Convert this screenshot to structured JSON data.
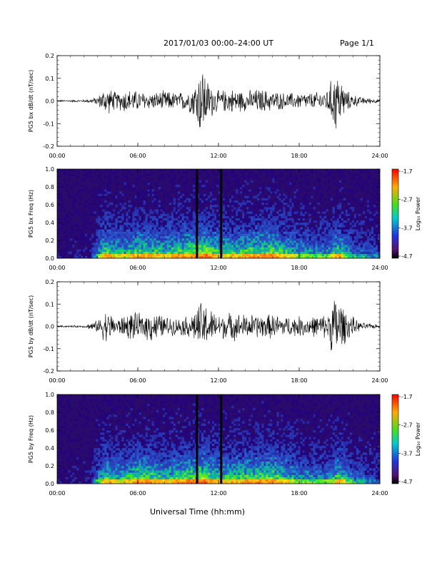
{
  "header": {
    "title": "2017/01/03  00:00–24:00 UT",
    "page": "Page 1/1"
  },
  "xaxis_title": "Universal Time (hh:mm)",
  "time_ticks": [
    "00:00",
    "06:00",
    "12:00",
    "18:00",
    "24:00"
  ],
  "colorbar": {
    "label": "Log₁₀ Power",
    "ticks": [
      "-1.7",
      "-2.7",
      "-3.7",
      "-4.7"
    ]
  },
  "colors": {
    "trace": "#000000",
    "spec_background": "#2a0a6a",
    "gap_line": "#000000"
  },
  "chart_data": [
    {
      "type": "line",
      "ylabel": "PG5 bx dB/dt (nT/sec)",
      "yticks": [
        "0.2",
        "0.1",
        "0.0",
        "-0.1",
        "-0.2"
      ],
      "ylim": [
        -0.2,
        0.2
      ],
      "xlim_hours": [
        0,
        24
      ],
      "envelope": [
        {
          "t": 0,
          "amp": 0.004
        },
        {
          "t": 2,
          "amp": 0.006
        },
        {
          "t": 3,
          "amp": 0.02
        },
        {
          "t": 3.6,
          "amp": 0.07
        },
        {
          "t": 4.5,
          "amp": 0.04
        },
        {
          "t": 5,
          "amp": 0.06
        },
        {
          "t": 6,
          "amp": 0.05
        },
        {
          "t": 7,
          "amp": 0.04
        },
        {
          "t": 8,
          "amp": 0.05
        },
        {
          "t": 9,
          "amp": 0.04
        },
        {
          "t": 10,
          "amp": 0.06
        },
        {
          "t": 10.8,
          "amp": 0.19
        },
        {
          "t": 11.2,
          "amp": 0.1
        },
        {
          "t": 12,
          "amp": 0.05
        },
        {
          "t": 13,
          "amp": 0.06
        },
        {
          "t": 14,
          "amp": 0.05
        },
        {
          "t": 15,
          "amp": 0.06
        },
        {
          "t": 16,
          "amp": 0.05
        },
        {
          "t": 17,
          "amp": 0.04
        },
        {
          "t": 18,
          "amp": 0.04
        },
        {
          "t": 19,
          "amp": 0.04
        },
        {
          "t": 20,
          "amp": 0.05
        },
        {
          "t": 20.8,
          "amp": 0.16
        },
        {
          "t": 21.5,
          "amp": 0.05
        },
        {
          "t": 22.5,
          "amp": 0.02
        },
        {
          "t": 24,
          "amp": 0.008
        }
      ]
    },
    {
      "type": "heatmap",
      "ylabel": "PG5 bx Freq (Hz)",
      "yticks": [
        "1.0",
        "0.8",
        "0.6",
        "0.4",
        "0.2",
        "0.0"
      ],
      "ylim": [
        0,
        1.0
      ],
      "xlim_hours": [
        0,
        24
      ],
      "zlim": [
        -4.7,
        -1.7
      ],
      "data_gaps_hours": [
        10.4,
        12.2
      ],
      "activity": [
        {
          "t": 0,
          "level": 0.05
        },
        {
          "t": 2.5,
          "level": 0.1
        },
        {
          "t": 3.5,
          "level": 0.6
        },
        {
          "t": 5,
          "level": 0.5
        },
        {
          "t": 6,
          "level": 0.6
        },
        {
          "t": 8,
          "level": 0.55
        },
        {
          "t": 10,
          "level": 0.65
        },
        {
          "t": 11,
          "level": 0.7
        },
        {
          "t": 12,
          "level": 0.55
        },
        {
          "t": 14,
          "level": 0.6
        },
        {
          "t": 16,
          "level": 0.65
        },
        {
          "t": 18,
          "level": 0.45
        },
        {
          "t": 20,
          "level": 0.4
        },
        {
          "t": 21,
          "level": 0.6
        },
        {
          "t": 22,
          "level": 0.35
        },
        {
          "t": 24,
          "level": 0.25
        }
      ]
    },
    {
      "type": "line",
      "ylabel": "PG5 by dB/dt (nT/sec)",
      "yticks": [
        "0.2",
        "0.1",
        "0.0",
        "-0.1",
        "-0.2"
      ],
      "ylim": [
        -0.2,
        0.2
      ],
      "xlim_hours": [
        0,
        24
      ],
      "envelope": [
        {
          "t": 0,
          "amp": 0.004
        },
        {
          "t": 2,
          "amp": 0.006
        },
        {
          "t": 3,
          "amp": 0.03
        },
        {
          "t": 3.6,
          "amp": 0.08
        },
        {
          "t": 4.5,
          "amp": 0.04
        },
        {
          "t": 5.5,
          "amp": 0.07
        },
        {
          "t": 6.5,
          "amp": 0.06
        },
        {
          "t": 7,
          "amp": 0.08
        },
        {
          "t": 8,
          "amp": 0.05
        },
        {
          "t": 9,
          "amp": 0.04
        },
        {
          "t": 10,
          "amp": 0.06
        },
        {
          "t": 10.8,
          "amp": 0.13
        },
        {
          "t": 11.5,
          "amp": 0.08
        },
        {
          "t": 12,
          "amp": 0.06
        },
        {
          "t": 13,
          "amp": 0.07
        },
        {
          "t": 14,
          "amp": 0.06
        },
        {
          "t": 15,
          "amp": 0.06
        },
        {
          "t": 16,
          "amp": 0.06
        },
        {
          "t": 17,
          "amp": 0.05
        },
        {
          "t": 18,
          "amp": 0.05
        },
        {
          "t": 19,
          "amp": 0.05
        },
        {
          "t": 20,
          "amp": 0.06
        },
        {
          "t": 20.8,
          "amp": 0.18
        },
        {
          "t": 21.4,
          "amp": 0.08
        },
        {
          "t": 22.5,
          "amp": 0.02
        },
        {
          "t": 24,
          "amp": 0.008
        }
      ]
    },
    {
      "type": "heatmap",
      "ylabel": "PG5 by Freq (Hz)",
      "yticks": [
        "1.0",
        "0.8",
        "0.6",
        "0.4",
        "0.2",
        "0.0"
      ],
      "ylim": [
        0,
        1.0
      ],
      "xlim_hours": [
        0,
        24
      ],
      "zlim": [
        -4.7,
        -1.7
      ],
      "data_gaps_hours": [
        10.4,
        12.2
      ],
      "activity": [
        {
          "t": 0,
          "level": 0.05
        },
        {
          "t": 2.5,
          "level": 0.1
        },
        {
          "t": 3.5,
          "level": 0.6
        },
        {
          "t": 5,
          "level": 0.5
        },
        {
          "t": 6,
          "level": 0.65
        },
        {
          "t": 8,
          "level": 0.55
        },
        {
          "t": 10,
          "level": 0.65
        },
        {
          "t": 11,
          "level": 0.7
        },
        {
          "t": 12,
          "level": 0.55
        },
        {
          "t": 14,
          "level": 0.6
        },
        {
          "t": 16,
          "level": 0.65
        },
        {
          "t": 18,
          "level": 0.45
        },
        {
          "t": 20,
          "level": 0.4
        },
        {
          "t": 21,
          "level": 0.6
        },
        {
          "t": 22,
          "level": 0.35
        },
        {
          "t": 24,
          "level": 0.25
        }
      ]
    }
  ]
}
